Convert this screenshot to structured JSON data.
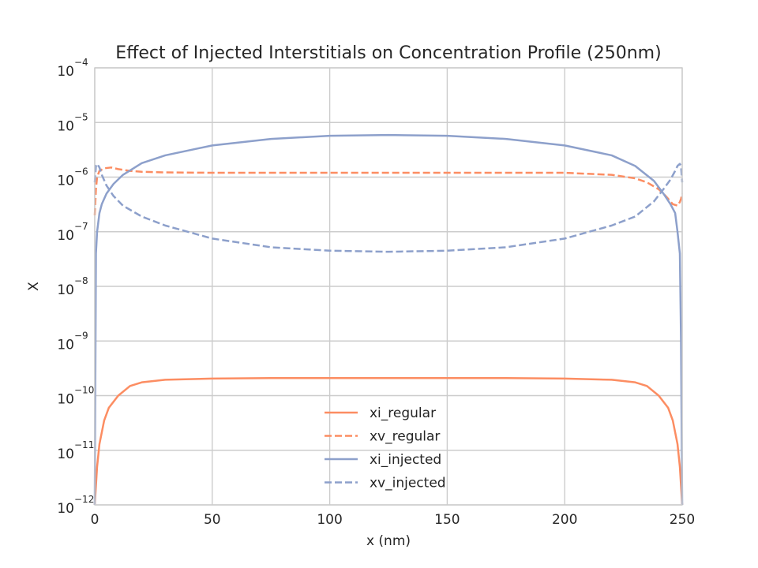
{
  "chart_data": {
    "type": "line",
    "title": "Effect of Injected Interstitials on Concentration Profile (250nm)",
    "xlabel": "x (nm)",
    "ylabel": "X",
    "xlim": [
      0,
      250
    ],
    "ylim": [
      1e-12,
      0.0001
    ],
    "yscale": "log",
    "grid": true,
    "legend_position": "lower center",
    "x_ticks": [
      0,
      50,
      100,
      150,
      200,
      250
    ],
    "y_ticks": [
      -12,
      -11,
      -10,
      -9,
      -8,
      -7,
      -6,
      -5,
      -4
    ],
    "series": [
      {
        "name": "xi_regular",
        "color": "#fc8d62",
        "style": "solid",
        "x": [
          0,
          1,
          2,
          4,
          6,
          10,
          15,
          20,
          30,
          50,
          75,
          100,
          125,
          150,
          175,
          200,
          220,
          230,
          235,
          240,
          244,
          246,
          248,
          249,
          250
        ],
        "y": [
          1e-12,
          5e-12,
          1.3e-11,
          3.5e-11,
          6e-11,
          1e-10,
          1.5e-10,
          1.75e-10,
          1.95e-10,
          2.05e-10,
          2.1e-10,
          2.1e-10,
          2.1e-10,
          2.1e-10,
          2.1e-10,
          2.05e-10,
          1.95e-10,
          1.75e-10,
          1.5e-10,
          1e-10,
          6e-11,
          3.5e-11,
          1.3e-11,
          5e-12,
          1e-12
        ]
      },
      {
        "name": "xv_regular",
        "color": "#fc8d62",
        "style": "dashed",
        "x": [
          0,
          0.5,
          1,
          2,
          4,
          7,
          10,
          15,
          20,
          30,
          50,
          75,
          100,
          125,
          150,
          175,
          200,
          220,
          230,
          235,
          240,
          243,
          246,
          248,
          249,
          249.5,
          250
        ],
        "y": [
          2e-07,
          6e-07,
          1e-06,
          1.3e-06,
          1.45e-06,
          1.5e-06,
          1.4e-06,
          1.3e-06,
          1.25e-06,
          1.22e-06,
          1.2e-06,
          1.2e-06,
          1.2e-06,
          1.2e-06,
          1.2e-06,
          1.2e-06,
          1.2e-06,
          1.1e-06,
          9.5e-07,
          8e-07,
          6e-07,
          4.5e-07,
          3.2e-07,
          3e-07,
          3.5e-07,
          4e-07,
          5e-07
        ]
      },
      {
        "name": "xi_injected",
        "color": "#8da0cb",
        "style": "solid",
        "x": [
          0,
          0.5,
          1,
          2,
          3,
          5,
          8,
          12,
          20,
          30,
          50,
          75,
          100,
          125,
          150,
          175,
          200,
          220,
          230,
          238,
          242,
          245,
          247,
          248,
          249,
          249.5,
          250
        ],
        "y": [
          1e-12,
          4e-08,
          1e-07,
          2.2e-07,
          3.2e-07,
          5e-07,
          7.5e-07,
          1.1e-06,
          1.8e-06,
          2.5e-06,
          3.8e-06,
          5e-06,
          5.7e-06,
          5.9e-06,
          5.7e-06,
          5e-06,
          3.8e-06,
          2.5e-06,
          1.6e-06,
          8.5e-07,
          5e-07,
          3.2e-07,
          2.2e-07,
          1e-07,
          4e-08,
          1e-09,
          1e-12
        ]
      },
      {
        "name": "xv_injected",
        "color": "#8da0cb",
        "style": "dashed",
        "x": [
          0,
          0.5,
          1,
          2,
          3,
          5,
          8,
          12,
          20,
          30,
          50,
          75,
          100,
          125,
          150,
          175,
          200,
          220,
          230,
          238,
          242,
          245,
          247,
          248,
          249,
          249.5,
          250
        ],
        "y": [
          8e-07,
          1.6e-06,
          1.75e-06,
          1.5e-06,
          1.1e-06,
          7e-07,
          4.5e-07,
          3e-07,
          1.9e-07,
          1.3e-07,
          7.5e-08,
          5.2e-08,
          4.5e-08,
          4.3e-08,
          4.5e-08,
          5.2e-08,
          7.5e-08,
          1.3e-07,
          1.9e-07,
          3.6e-07,
          6e-07,
          9e-07,
          1.3e-06,
          1.6e-06,
          1.75e-06,
          1.6e-06,
          8e-07
        ]
      }
    ]
  }
}
